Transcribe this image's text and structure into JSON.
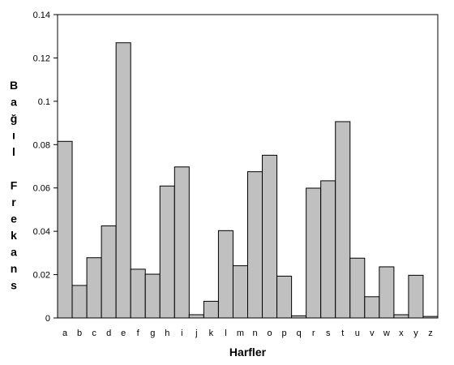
{
  "chart_data": {
    "type": "bar",
    "title": "",
    "xlabel": "Harfler",
    "ylabel": "Bağıl Frekans",
    "ylim": [
      0,
      0.14
    ],
    "yticks": [
      "0",
      "0.02",
      "0.04",
      "0.06",
      "0.08",
      "0.1",
      "0.12",
      "0.14"
    ],
    "grid": false,
    "legend": "none",
    "bar_color": "#c0c0c0",
    "bar_edge_color": "#000000",
    "categories": [
      "a",
      "b",
      "c",
      "d",
      "e",
      "f",
      "g",
      "h",
      "i",
      "j",
      "k",
      "l",
      "m",
      "n",
      "o",
      "p",
      "q",
      "r",
      "s",
      "t",
      "u",
      "v",
      "w",
      "x",
      "y",
      "z"
    ],
    "values": [
      0.0815,
      0.015,
      0.0278,
      0.0425,
      0.127,
      0.0225,
      0.0202,
      0.0609,
      0.0697,
      0.0015,
      0.0077,
      0.0403,
      0.0241,
      0.0675,
      0.0751,
      0.0193,
      0.001,
      0.0599,
      0.0633,
      0.0906,
      0.0276,
      0.0098,
      0.0236,
      0.0015,
      0.0197,
      0.0007
    ]
  }
}
